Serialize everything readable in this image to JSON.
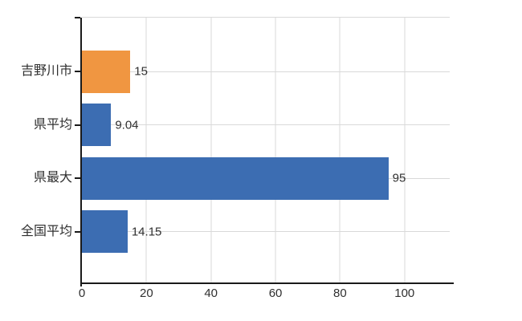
{
  "chart_data": {
    "type": "bar",
    "orientation": "horizontal",
    "categories": [
      "吉野川市",
      "県平均",
      "県最大",
      "全国平均"
    ],
    "values": [
      15,
      9.04,
      95,
      14.15
    ],
    "value_labels": [
      "15",
      "9.04",
      "95",
      "14.15"
    ],
    "series": [
      {
        "name": "値",
        "values": [
          15,
          9.04,
          95,
          14.15
        ],
        "colors": [
          "#F09641",
          "#3C6DB2",
          "#3C6DB2",
          "#3C6DB2"
        ]
      }
    ],
    "highlight_color": "#F09641",
    "base_color": "#3C6DB2",
    "xlim": [
      0,
      114
    ],
    "x_ticks": [
      0,
      20,
      40,
      60,
      80,
      100
    ],
    "grid": "on",
    "legend": "none",
    "background_color": "#FFFFFF",
    "gridline_color": "#D9D9D9",
    "axis_color": "#1A1A1A",
    "text_color": "#303030"
  }
}
